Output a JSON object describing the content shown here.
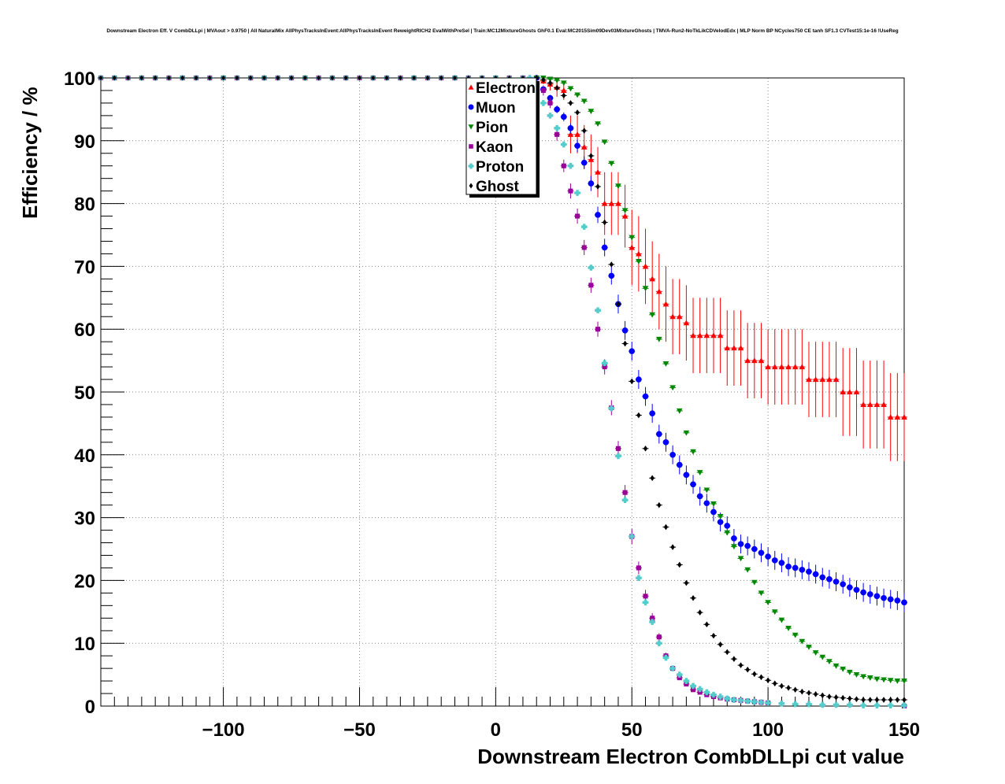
{
  "chart_data": {
    "type": "scatter",
    "title": "Downstream Electron Eff. V CombDLLpi | MVAout > 0.9750 | All NaturalMix AllPhysTracksInEvent:AllPhysTracksInEvent ReweightRICH2 EvalWithPreSel | Train:MC12MixtureGhosts GhF0.1 Eval:MC2015Sim09Dev03MixtureGhosts | TMVA-Run2-NoTkLikCDVelodEdx | MLP Norm BP NCycles750 CE tanh SF1.3 CVTest15:1e-16 !UseReg",
    "xlabel": "Downstream Electron CombDLLpi cut value",
    "ylabel": "Efficiency / %",
    "xlim": [
      -145,
      150
    ],
    "ylim": [
      0,
      100
    ],
    "xticks": [
      -100,
      -50,
      0,
      50,
      100,
      150
    ],
    "xtick_labels": [
      "−100",
      "−50",
      "0",
      "50",
      "100",
      "150"
    ],
    "yticks": [
      0,
      10,
      20,
      30,
      40,
      50,
      60,
      70,
      80,
      90,
      100
    ],
    "ytick_labels": [
      "0",
      "10",
      "20",
      "30",
      "40",
      "50",
      "60",
      "70",
      "80",
      "90",
      "100"
    ],
    "grid": true,
    "legend_position": "top-center",
    "series": [
      {
        "name": "Electron",
        "color": "#ff0000",
        "marker": "triangle-up",
        "x": [
          -145,
          15,
          17.5,
          20,
          22.5,
          25,
          27.5,
          30,
          32.5,
          35,
          37.5,
          40,
          42.5,
          45,
          47.5,
          50,
          52.5,
          55,
          57.5,
          60,
          62.5,
          65,
          67.5,
          70,
          72.5,
          75,
          77.5,
          80,
          82.5,
          85,
          87.5,
          90,
          92.5,
          95,
          97.5,
          100,
          102.5,
          105,
          107.5,
          110,
          112.5,
          115,
          117.5,
          120,
          122.5,
          125,
          127.5,
          130,
          132.5,
          135,
          137.5,
          140,
          142.5,
          145,
          147.5,
          150
        ],
        "y": [
          100,
          100,
          99.5,
          99,
          98.5,
          98,
          91,
          91,
          89,
          87,
          85,
          80,
          80,
          80,
          78,
          73,
          72,
          70,
          68,
          66,
          64,
          62,
          62,
          61,
          59,
          59,
          59,
          59,
          59,
          57,
          57,
          57,
          55,
          55,
          55,
          54,
          54,
          54,
          54,
          54,
          54,
          52,
          52,
          52,
          52,
          52,
          50,
          50,
          50,
          48,
          48,
          48,
          48,
          46,
          46,
          46
        ],
        "yerr": [
          0,
          0,
          0.5,
          1,
          1.5,
          1.5,
          3,
          3,
          3.5,
          4,
          4,
          5,
          5,
          5,
          5,
          6,
          6,
          6,
          6,
          6,
          6,
          6,
          6,
          6,
          6,
          6,
          6,
          6,
          6,
          6,
          6,
          6,
          6,
          6,
          6,
          6,
          6,
          6,
          6,
          6,
          6,
          6,
          6,
          6,
          6,
          6,
          7,
          7,
          7,
          7,
          7,
          7,
          7,
          7,
          7,
          7
        ]
      },
      {
        "name": "Muon",
        "color": "#0000ff",
        "marker": "circle",
        "x": [
          -145,
          15,
          17.5,
          20,
          22.5,
          25,
          27.5,
          30,
          32.5,
          35,
          37.5,
          40,
          42.5,
          45,
          47.5,
          50,
          52.5,
          55,
          57.5,
          60,
          62.5,
          65,
          67.5,
          70,
          72.5,
          75,
          77.5,
          80,
          82.5,
          85,
          87.5,
          90,
          92.5,
          95,
          97.5,
          100,
          102.5,
          105,
          107.5,
          110,
          112.5,
          115,
          117.5,
          120,
          122.5,
          125,
          127.5,
          130,
          132.5,
          135,
          137.5,
          140,
          142.5,
          145,
          147.5,
          150
        ],
        "y": [
          100,
          100,
          98.2,
          96.8,
          95,
          93.8,
          92,
          89.2,
          86.5,
          83.2,
          78.2,
          73,
          68.5,
          64,
          59.8,
          56.5,
          52,
          49.3,
          46.6,
          43.3,
          42,
          40,
          38.4,
          36.8,
          35.3,
          33.4,
          32.3,
          30.9,
          29.3,
          28.7,
          26.7,
          25.8,
          25.5,
          25,
          24.4,
          23.8,
          23.2,
          22.8,
          22.2,
          22,
          21.7,
          21.4,
          21,
          20.5,
          20.2,
          19.8,
          19.4,
          18.9,
          18.5,
          18.1,
          17.8,
          17.5,
          17.2,
          17,
          16.8,
          16.5
        ],
        "yerr": [
          0,
          0,
          0.4,
          0.5,
          0.6,
          0.7,
          0.8,
          1,
          1,
          1.2,
          1.3,
          1.4,
          1.4,
          1.5,
          1.5,
          1.5,
          1.5,
          1.5,
          1.5,
          1.5,
          1.5,
          1.5,
          1.5,
          1.5,
          1.5,
          1.5,
          1.5,
          1.5,
          1.5,
          1.5,
          1.5,
          1.5,
          1.5,
          1.5,
          1.5,
          1.5,
          1.5,
          1.5,
          1.5,
          1.5,
          1.5,
          1.5,
          1.5,
          1.5,
          1.5,
          1.5,
          1.5,
          1.5,
          1.5,
          1.5,
          1.5,
          1.5,
          1.5,
          1.5,
          1.5,
          1.5
        ]
      },
      {
        "name": "Pion",
        "color": "#008800",
        "marker": "triangle-down",
        "x": [
          -145,
          15,
          17.5,
          20,
          22.5,
          25,
          27.5,
          30,
          32.5,
          35,
          37.5,
          40,
          42.5,
          45,
          47.5,
          50,
          52.5,
          55,
          57.5,
          60,
          62.5,
          65,
          67.5,
          70,
          72.5,
          75,
          77.5,
          80,
          82.5,
          85,
          87.5,
          90,
          92.5,
          95,
          97.5,
          100,
          102.5,
          105,
          107.5,
          110,
          112.5,
          115,
          117.5,
          120,
          122.5,
          125,
          127.5,
          130,
          132.5,
          135,
          137.5,
          140,
          142.5,
          145,
          147.5,
          150
        ],
        "y": [
          100,
          100,
          100,
          99.8,
          99.6,
          99.2,
          98.3,
          97.3,
          96.3,
          94.7,
          92.7,
          89.8,
          86.4,
          82.8,
          78.9,
          74.6,
          70.8,
          66.5,
          62.3,
          58.4,
          54.5,
          50.7,
          47,
          43.5,
          40.5,
          37.2,
          34.4,
          32.2,
          30.2,
          27.6,
          25.4,
          23.5,
          21.7,
          19.7,
          18,
          16.5,
          15,
          13.7,
          12.4,
          11.3,
          10.3,
          9.4,
          8.5,
          7.8,
          7.1,
          6.4,
          5.9,
          5.4,
          5,
          4.7,
          4.5,
          4.3,
          4.2,
          4.1,
          4,
          4
        ]
      },
      {
        "name": "Kaon",
        "color": "#990099",
        "marker": "square",
        "x": [
          -145,
          10,
          12.5,
          15,
          17.5,
          20,
          22.5,
          25,
          27.5,
          30,
          32.5,
          35,
          37.5,
          40,
          42.5,
          45,
          47.5,
          50,
          52.5,
          55,
          57.5,
          60,
          62.5,
          65,
          67.5,
          70,
          72.5,
          75,
          77.5,
          80,
          82.5,
          85,
          87.5,
          90,
          92.5,
          95,
          97.5,
          100,
          150
        ],
        "y": [
          100,
          100,
          99.5,
          99,
          98,
          96,
          91,
          86,
          82,
          78,
          73,
          67,
          60,
          54,
          47.5,
          41,
          34,
          27,
          22,
          17.5,
          14,
          11,
          8,
          6,
          4.5,
          3.5,
          2.6,
          2.2,
          1.8,
          1.5,
          1.3,
          1.1,
          1,
          0.9,
          0.8,
          0.7,
          0.6,
          0.5,
          0
        ],
        "yerr": [
          0,
          0,
          0.5,
          0.5,
          0.8,
          0.8,
          1,
          1,
          1.2,
          1.2,
          1.2,
          1.2,
          1.2,
          1.2,
          1.2,
          1.2,
          1.2,
          1.2,
          1,
          1,
          0.8,
          0.6,
          0.5,
          0.4,
          0.3,
          0.3,
          0.3,
          0.2,
          0.2,
          0.2,
          0.2,
          0.2,
          0.2,
          0.2,
          0.2,
          0.2,
          0.2,
          0.2,
          0
        ]
      },
      {
        "name": "Proton",
        "color": "#55cccc",
        "marker": "cross",
        "x": [
          -145,
          12.5,
          15,
          17.5,
          20,
          22.5,
          25,
          27.5,
          30,
          32.5,
          35,
          37.5,
          40,
          42.5,
          45,
          47.5,
          50,
          52.5,
          55,
          57.5,
          60,
          62.5,
          65,
          67.5,
          70,
          72.5,
          75,
          77.5,
          80,
          82.5,
          85,
          87.5,
          90,
          92.5,
          95,
          97.5,
          100,
          105,
          110,
          115,
          120,
          125,
          130,
          135,
          140,
          145,
          150
        ],
        "y": [
          100,
          100,
          98,
          96,
          94,
          92,
          89.4,
          86,
          81.7,
          76.3,
          69.8,
          63,
          54.6,
          47.4,
          39.8,
          32.8,
          27,
          20.4,
          16.5,
          13.4,
          10,
          7.7,
          6,
          5,
          4,
          3.2,
          2.7,
          2.2,
          1.8,
          1.5,
          1.2,
          1,
          0.9,
          0.8,
          0.7,
          0.6,
          0.5,
          0.4,
          0.3,
          0.3,
          0.2,
          0.2,
          0.2,
          0.1,
          0.1,
          0.1,
          0.1
        ]
      },
      {
        "name": "Ghost",
        "color": "#000000",
        "marker": "diamond",
        "x": [
          -145,
          15,
          17.5,
          20,
          22.5,
          25,
          27.5,
          30,
          32.5,
          35,
          37.5,
          40,
          42.5,
          45,
          47.5,
          50,
          52.5,
          55,
          57.5,
          60,
          62.5,
          65,
          67.5,
          70,
          72.5,
          75,
          77.5,
          80,
          82.5,
          85,
          87.5,
          90,
          92.5,
          95,
          97.5,
          100,
          102.5,
          105,
          107.5,
          110,
          112.5,
          115,
          117.5,
          120,
          122.5,
          125,
          127.5,
          130,
          132.5,
          135,
          137.5,
          140,
          142.5,
          145,
          147.5,
          150
        ],
        "y": [
          100,
          100,
          99.7,
          99.2,
          98.4,
          97.2,
          96,
          94.5,
          91.6,
          87.6,
          82.7,
          77,
          70.3,
          64,
          57.7,
          51.7,
          46.3,
          41,
          36.3,
          32,
          28.5,
          25.3,
          22.5,
          19.6,
          17.2,
          14.9,
          13,
          11.2,
          9.8,
          8.6,
          7.5,
          6.5,
          5.8,
          5.1,
          4.6,
          4.1,
          3.6,
          3.2,
          2.9,
          2.6,
          2.3,
          2.1,
          1.9,
          1.7,
          1.5,
          1.4,
          1.3,
          1.2,
          1.1,
          1,
          1,
          1,
          1,
          1,
          1,
          1
        ]
      }
    ]
  }
}
